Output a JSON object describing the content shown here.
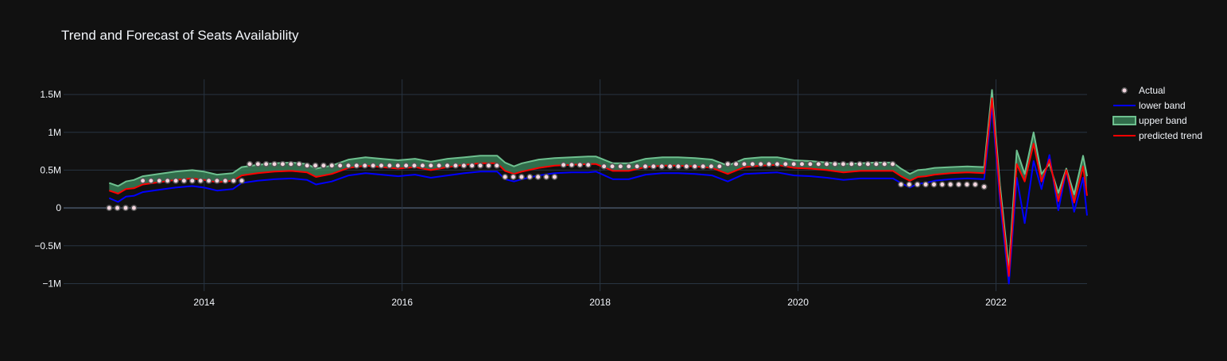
{
  "chart_data": {
    "type": "line",
    "title": "Trend and Forecast of Seats Availability",
    "xlabel": "",
    "ylabel": "",
    "x_range": [
      2012.58,
      2022.92
    ],
    "ylim": [
      -1100000,
      1700000
    ],
    "x_ticks": [
      {
        "value": 2014,
        "label": "2014"
      },
      {
        "value": 2016,
        "label": "2016"
      },
      {
        "value": 2018,
        "label": "2018"
      },
      {
        "value": 2020,
        "label": "2020"
      },
      {
        "value": 2022,
        "label": "2022"
      }
    ],
    "y_ticks": [
      {
        "value": 1500000,
        "label": "1.5M"
      },
      {
        "value": 1000000,
        "label": "1M"
      },
      {
        "value": 500000,
        "label": "0.5M"
      },
      {
        "value": 0,
        "label": "0"
      },
      {
        "value": -500000,
        "label": "−0.5M"
      },
      {
        "value": -1000000,
        "label": "−1M"
      }
    ],
    "grid": true,
    "legend_position": "top-right",
    "colors": {
      "background": "#111111",
      "grid": "#283442",
      "zeroline": "#3b4654",
      "text": "#f2f5fa",
      "actual_fill": "#f4d6df",
      "actual_stroke": "#555555",
      "lower": "#0000ff",
      "upper": "#6ec08f",
      "upper_fill": "rgba(60,140,95,0.75)",
      "trend": "#ff0000"
    },
    "legend": [
      {
        "key": "actual",
        "label": "Actual"
      },
      {
        "key": "lower",
        "label": "lower band"
      },
      {
        "key": "upper",
        "label": "upper band"
      },
      {
        "key": "trend",
        "label": "predicted trend"
      }
    ],
    "series": [
      {
        "name": "Actual",
        "key": "actual",
        "mode": "markers",
        "segments": [
          {
            "start": 2013.04,
            "end": 2013.29,
            "value": 0
          },
          {
            "start": 2013.38,
            "end": 2014.38,
            "value": 360000
          },
          {
            "start": 2014.46,
            "end": 2014.96,
            "value": 580000
          },
          {
            "start": 2015.04,
            "end": 2016.96,
            "value": 560000
          },
          {
            "start": 2017.04,
            "end": 2017.54,
            "value": 410000
          },
          {
            "start": 2017.63,
            "end": 2017.96,
            "value": 570000
          },
          {
            "start": 2018.04,
            "end": 2019.21,
            "value": 550000
          },
          {
            "start": 2019.29,
            "end": 2020.96,
            "value": 580000
          },
          {
            "start": 2021.04,
            "end": 2021.79,
            "value": 310000
          },
          {
            "start": 2021.88,
            "end": 2021.88,
            "value": 280000
          }
        ]
      },
      {
        "name": "lower band",
        "key": "lower",
        "x": [
          2013.04,
          2013.13,
          2013.21,
          2013.29,
          2013.38,
          2013.54,
          2013.71,
          2013.88,
          2014.0,
          2014.13,
          2014.29,
          2014.38,
          2014.54,
          2014.71,
          2014.88,
          2015.04,
          2015.13,
          2015.29,
          2015.46,
          2015.63,
          2015.79,
          2015.96,
          2016.13,
          2016.29,
          2016.46,
          2016.63,
          2016.79,
          2016.96,
          2017.04,
          2017.13,
          2017.21,
          2017.38,
          2017.54,
          2017.71,
          2017.88,
          2017.96,
          2018.13,
          2018.29,
          2018.46,
          2018.63,
          2018.79,
          2018.96,
          2019.13,
          2019.29,
          2019.46,
          2019.63,
          2019.79,
          2019.96,
          2020.13,
          2020.29,
          2020.46,
          2020.63,
          2020.79,
          2020.96,
          2021.04,
          2021.13,
          2021.21,
          2021.29,
          2021.38,
          2021.54,
          2021.71,
          2021.88,
          2021.96,
          2022.04,
          2022.13,
          2022.21,
          2022.29,
          2022.38,
          2022.46,
          2022.54,
          2022.63,
          2022.71,
          2022.79,
          2022.88,
          2022.92
        ],
        "values": [
          130000,
          80000,
          150000,
          160000,
          210000,
          240000,
          270000,
          290000,
          270000,
          230000,
          250000,
          330000,
          360000,
          380000,
          390000,
          370000,
          310000,
          350000,
          430000,
          460000,
          440000,
          420000,
          440000,
          400000,
          430000,
          460000,
          480000,
          480000,
          380000,
          350000,
          380000,
          430000,
          460000,
          470000,
          470000,
          480000,
          380000,
          380000,
          440000,
          460000,
          460000,
          450000,
          430000,
          350000,
          450000,
          460000,
          470000,
          430000,
          420000,
          400000,
          370000,
          390000,
          390000,
          390000,
          330000,
          270000,
          320000,
          330000,
          360000,
          380000,
          390000,
          380000,
          1350000,
          100000,
          -1000000,
          400000,
          -200000,
          620000,
          250000,
          700000,
          -30000,
          500000,
          -50000,
          400000,
          -100000
        ]
      },
      {
        "name": "upper band",
        "key": "upper",
        "x": [
          2013.04,
          2013.13,
          2013.21,
          2013.29,
          2013.38,
          2013.54,
          2013.71,
          2013.88,
          2014.0,
          2014.13,
          2014.29,
          2014.38,
          2014.54,
          2014.71,
          2014.88,
          2015.04,
          2015.13,
          2015.29,
          2015.46,
          2015.63,
          2015.79,
          2015.96,
          2016.13,
          2016.29,
          2016.46,
          2016.63,
          2016.79,
          2016.96,
          2017.04,
          2017.13,
          2017.21,
          2017.38,
          2017.54,
          2017.71,
          2017.88,
          2017.96,
          2018.13,
          2018.29,
          2018.46,
          2018.63,
          2018.79,
          2018.96,
          2019.13,
          2019.29,
          2019.46,
          2019.63,
          2019.79,
          2019.96,
          2020.13,
          2020.29,
          2020.46,
          2020.63,
          2020.79,
          2020.96,
          2021.04,
          2021.13,
          2021.21,
          2021.29,
          2021.38,
          2021.54,
          2021.71,
          2021.88,
          2021.96,
          2022.04,
          2022.13,
          2022.21,
          2022.29,
          2022.38,
          2022.46,
          2022.54,
          2022.63,
          2022.71,
          2022.79,
          2022.88,
          2022.92
        ],
        "values": [
          330000,
          290000,
          350000,
          370000,
          420000,
          450000,
          480000,
          500000,
          480000,
          440000,
          460000,
          540000,
          570000,
          590000,
          600000,
          580000,
          520000,
          560000,
          640000,
          670000,
          650000,
          630000,
          650000,
          610000,
          650000,
          670000,
          690000,
          690000,
          600000,
          550000,
          590000,
          640000,
          660000,
          670000,
          680000,
          680000,
          590000,
          590000,
          650000,
          670000,
          670000,
          660000,
          640000,
          560000,
          650000,
          670000,
          670000,
          630000,
          620000,
          600000,
          580000,
          590000,
          600000,
          600000,
          520000,
          450000,
          500000,
          510000,
          530000,
          540000,
          550000,
          540000,
          1560000,
          300000,
          -800000,
          760000,
          450000,
          1000000,
          450000,
          580000,
          200000,
          520000,
          180000,
          690000,
          420000
        ]
      },
      {
        "name": "predicted trend",
        "key": "trend",
        "x": [
          2013.04,
          2013.13,
          2013.21,
          2013.29,
          2013.38,
          2013.54,
          2013.71,
          2013.88,
          2014.0,
          2014.13,
          2014.29,
          2014.38,
          2014.54,
          2014.71,
          2014.88,
          2015.04,
          2015.13,
          2015.29,
          2015.46,
          2015.63,
          2015.79,
          2015.96,
          2016.13,
          2016.29,
          2016.46,
          2016.63,
          2016.79,
          2016.96,
          2017.04,
          2017.13,
          2017.21,
          2017.38,
          2017.54,
          2017.71,
          2017.88,
          2017.96,
          2018.13,
          2018.29,
          2018.46,
          2018.63,
          2018.79,
          2018.96,
          2019.13,
          2019.29,
          2019.46,
          2019.63,
          2019.79,
          2019.96,
          2020.13,
          2020.29,
          2020.46,
          2020.63,
          2020.79,
          2020.96,
          2021.04,
          2021.13,
          2021.21,
          2021.29,
          2021.38,
          2021.54,
          2021.71,
          2021.88,
          2021.96,
          2022.04,
          2022.13,
          2022.21,
          2022.29,
          2022.38,
          2022.46,
          2022.54,
          2022.63,
          2022.71,
          2022.79,
          2022.88,
          2022.92
        ],
        "values": [
          230000,
          190000,
          250000,
          260000,
          310000,
          340000,
          370000,
          390000,
          370000,
          340000,
          360000,
          430000,
          460000,
          480000,
          490000,
          470000,
          410000,
          450000,
          530000,
          560000,
          540000,
          520000,
          540000,
          500000,
          540000,
          570000,
          590000,
          590000,
          490000,
          450000,
          480000,
          530000,
          560000,
          570000,
          580000,
          580000,
          490000,
          490000,
          540000,
          560000,
          560000,
          550000,
          530000,
          450000,
          540000,
          560000,
          570000,
          530000,
          520000,
          500000,
          470000,
          490000,
          490000,
          490000,
          420000,
          360000,
          410000,
          420000,
          440000,
          460000,
          470000,
          460000,
          1450000,
          200000,
          -900000,
          580000,
          350000,
          850000,
          350000,
          640000,
          90000,
          500000,
          70000,
          550000,
          160000
        ]
      }
    ]
  }
}
